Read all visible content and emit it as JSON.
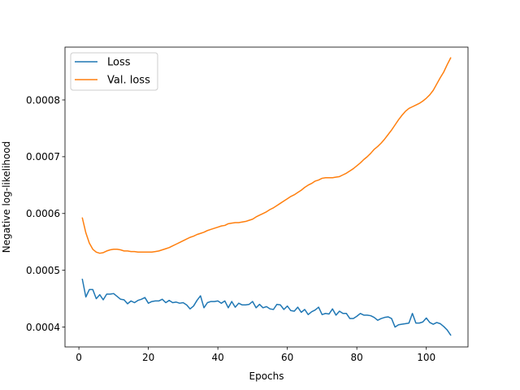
{
  "chart_data": {
    "type": "line",
    "title": "",
    "xlabel": "Epochs",
    "ylabel": "Negative log-likelihood",
    "xlim": [
      -4,
      112
    ],
    "ylim": [
      0.000365,
      0.000893
    ],
    "xticks": [
      0,
      20,
      40,
      60,
      80,
      100
    ],
    "xtick_labels": [
      "0",
      "20",
      "40",
      "60",
      "80",
      "100"
    ],
    "yticks": [
      0.0004,
      0.0005,
      0.0006,
      0.0007,
      0.0008
    ],
    "ytick_labels": [
      "0.0004",
      "0.0005",
      "0.0006",
      "0.0007",
      "0.0008"
    ],
    "grid": false,
    "legend_position": "top-left",
    "series": [
      {
        "name": "Loss",
        "color": "#1f77b4",
        "x": [
          1,
          2,
          3,
          4,
          5,
          6,
          7,
          8,
          9,
          10,
          11,
          12,
          13,
          14,
          15,
          16,
          17,
          18,
          19,
          20,
          21,
          22,
          23,
          24,
          25,
          26,
          27,
          28,
          29,
          30,
          31,
          32,
          33,
          34,
          35,
          36,
          37,
          38,
          39,
          40,
          41,
          42,
          43,
          44,
          45,
          46,
          47,
          48,
          49,
          50,
          51,
          52,
          53,
          54,
          55,
          56,
          57,
          58,
          59,
          60,
          61,
          62,
          63,
          64,
          65,
          66,
          67,
          68,
          69,
          70,
          71,
          72,
          73,
          74,
          75,
          76,
          77,
          78,
          79,
          80,
          81,
          82,
          83,
          84,
          85,
          86,
          87,
          88,
          89,
          90,
          91,
          92,
          93,
          94,
          95,
          96,
          97,
          98,
          99,
          100,
          101,
          102,
          103,
          104,
          105,
          106,
          107
        ],
        "values": [
          0.000484,
          0.000453,
          0.000466,
          0.000466,
          0.00045,
          0.000457,
          0.000448,
          0.000458,
          0.000458,
          0.000459,
          0.000454,
          0.000449,
          0.000448,
          0.000441,
          0.000446,
          0.000443,
          0.000447,
          0.000449,
          0.000452,
          0.000442,
          0.000445,
          0.000446,
          0.000446,
          0.000449,
          0.000443,
          0.000447,
          0.000443,
          0.000444,
          0.000442,
          0.000443,
          0.000439,
          0.000432,
          0.000437,
          0.000447,
          0.000455,
          0.000434,
          0.000443,
          0.000445,
          0.000445,
          0.000446,
          0.000442,
          0.000446,
          0.000434,
          0.000445,
          0.000435,
          0.000442,
          0.000439,
          0.000439,
          0.00044,
          0.000445,
          0.000434,
          0.00044,
          0.000434,
          0.000436,
          0.000432,
          0.000431,
          0.00044,
          0.000439,
          0.000431,
          0.000437,
          0.000429,
          0.000428,
          0.000435,
          0.000426,
          0.000431,
          0.000422,
          0.000427,
          0.00043,
          0.000435,
          0.000422,
          0.000424,
          0.000423,
          0.000432,
          0.000421,
          0.000428,
          0.000424,
          0.000424,
          0.000415,
          0.000415,
          0.000419,
          0.000424,
          0.000421,
          0.000421,
          0.00042,
          0.000417,
          0.000412,
          0.000415,
          0.000417,
          0.000418,
          0.000415,
          0.0004,
          0.000404,
          0.000405,
          0.000406,
          0.000407,
          0.000424,
          0.000407,
          0.000407,
          0.000409,
          0.000416,
          0.000408,
          0.000405,
          0.000408,
          0.000406,
          0.000401,
          0.000395,
          0.000386
        ]
      },
      {
        "name": "Val. loss",
        "color": "#ff7f0e",
        "x": [
          1,
          2,
          3,
          4,
          5,
          6,
          7,
          8,
          9,
          10,
          11,
          12,
          13,
          14,
          15,
          16,
          17,
          18,
          19,
          20,
          21,
          22,
          23,
          24,
          25,
          26,
          27,
          28,
          29,
          30,
          31,
          32,
          33,
          34,
          35,
          36,
          37,
          38,
          39,
          40,
          41,
          42,
          43,
          44,
          45,
          46,
          47,
          48,
          49,
          50,
          51,
          52,
          53,
          54,
          55,
          56,
          57,
          58,
          59,
          60,
          61,
          62,
          63,
          64,
          65,
          66,
          67,
          68,
          69,
          70,
          71,
          72,
          73,
          74,
          75,
          76,
          77,
          78,
          79,
          80,
          81,
          82,
          83,
          84,
          85,
          86,
          87,
          88,
          89,
          90,
          91,
          92,
          93,
          94,
          95,
          96,
          97,
          98,
          99,
          100,
          101,
          102,
          103,
          104,
          105,
          106,
          107
        ],
        "values": [
          0.000592,
          0.000566,
          0.000548,
          0.000537,
          0.000532,
          0.00053,
          0.000531,
          0.000534,
          0.000536,
          0.000537,
          0.000537,
          0.000536,
          0.000534,
          0.000534,
          0.000533,
          0.000533,
          0.000532,
          0.000532,
          0.000532,
          0.000532,
          0.000532,
          0.000533,
          0.000534,
          0.000536,
          0.000538,
          0.00054,
          0.000543,
          0.000546,
          0.000549,
          0.000552,
          0.000555,
          0.000558,
          0.00056,
          0.000563,
          0.000565,
          0.000567,
          0.00057,
          0.000572,
          0.000574,
          0.000576,
          0.000578,
          0.000579,
          0.000582,
          0.000583,
          0.000584,
          0.000584,
          0.000585,
          0.000586,
          0.000588,
          0.00059,
          0.000594,
          0.000597,
          0.0006,
          0.000603,
          0.000607,
          0.00061,
          0.000614,
          0.000618,
          0.000622,
          0.000626,
          0.00063,
          0.000633,
          0.000637,
          0.000641,
          0.000646,
          0.00065,
          0.000653,
          0.000657,
          0.000659,
          0.000662,
          0.000663,
          0.000663,
          0.000663,
          0.000664,
          0.000665,
          0.000668,
          0.000671,
          0.000675,
          0.000679,
          0.000684,
          0.000689,
          0.000695,
          0.0007,
          0.000706,
          0.000713,
          0.000718,
          0.000724,
          0.000731,
          0.000739,
          0.000747,
          0.000756,
          0.000765,
          0.000773,
          0.00078,
          0.000785,
          0.000788,
          0.000791,
          0.000794,
          0.000798,
          0.000803,
          0.000809,
          0.000817,
          0.000828,
          0.000839,
          0.000849,
          0.000862,
          0.000874
        ]
      }
    ]
  }
}
